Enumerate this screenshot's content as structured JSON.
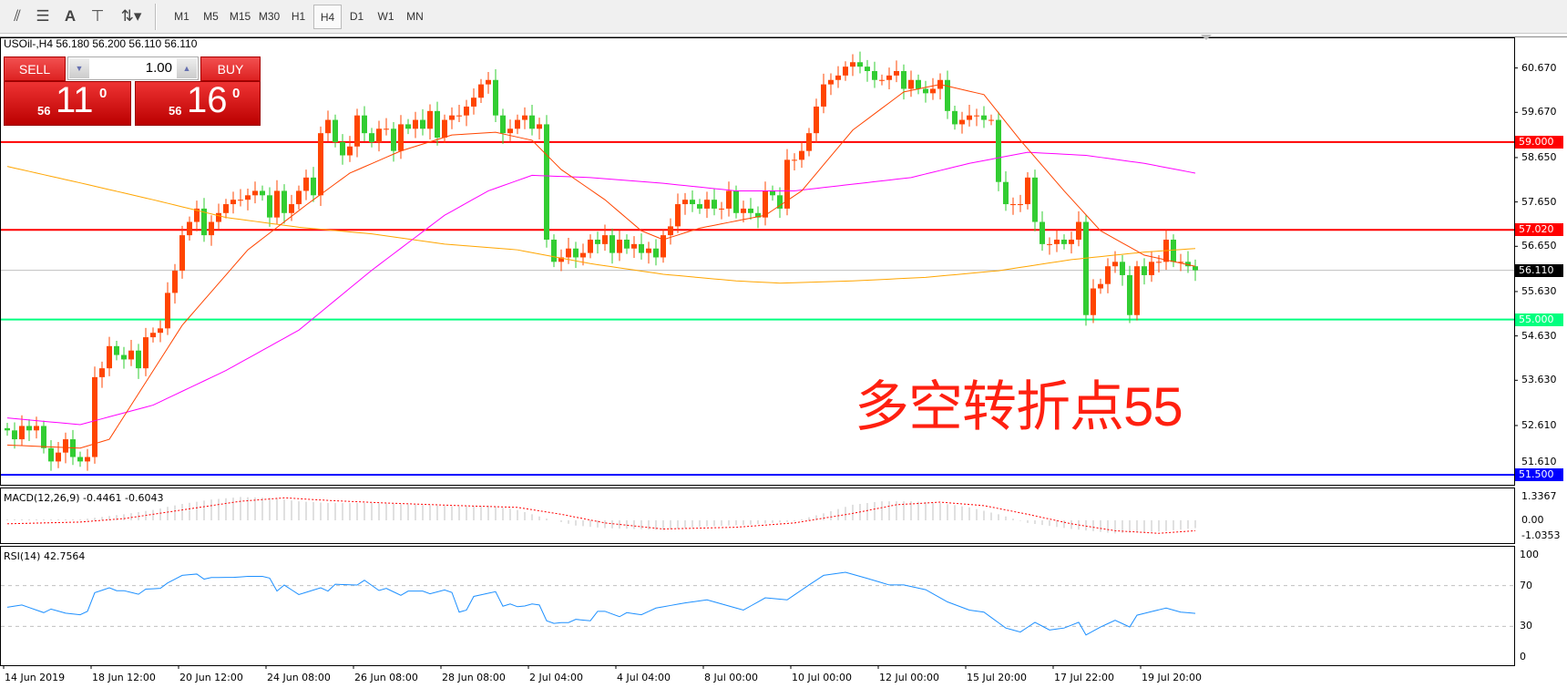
{
  "toolbar": {
    "icons": [
      "fibonacci-expansion-icon",
      "fibonacci-fan-icon",
      "text-icon",
      "text-label-icon",
      "arrows-icon"
    ],
    "timeframes": [
      "M1",
      "M5",
      "M15",
      "M30",
      "H1",
      "H4",
      "D1",
      "W1",
      "MN"
    ],
    "active": "H4"
  },
  "symbol_info": "USOil-,H4  56.180 56.200 56.110 56.110",
  "trade": {
    "sell_label": "SELL",
    "buy_label": "BUY",
    "lot": "1.00",
    "sell_small": "56",
    "sell_big": "11",
    "sell_sup": "0",
    "buy_small": "56",
    "buy_big": "16",
    "buy_sup": "0"
  },
  "annotation": "多空转折点55",
  "macd_label": "MACD(12,26,9) -0.4461 -0.6043",
  "rsi_label": "RSI(14) 42.7564",
  "colors": {
    "up": "#ff4500",
    "down": "#32cd32",
    "ma_fast": "#ff4500",
    "ma_mid": "#ff00ff",
    "ma_slow": "#ffa500",
    "resistance": "#ff0000",
    "support": "#00ff7f",
    "low_line": "#0000ff",
    "macd_hist": "#c0c0c0",
    "macd_signal": "#ff0000",
    "rsi": "#1e90ff"
  },
  "chart_data": {
    "type": "candlestick",
    "price_axis": {
      "ticks": [
        "60.670",
        "59.670",
        "58.650",
        "57.650",
        "56.650",
        "55.630",
        "54.630",
        "53.630",
        "52.610",
        "51.610"
      ],
      "range": [
        51.3,
        60.95
      ]
    },
    "levels": [
      {
        "value": "59.000",
        "color": "#ff0000"
      },
      {
        "value": "57.020",
        "color": "#ff0000"
      },
      {
        "value": "56.110",
        "color": "#000000",
        "line": "#c0c0c0"
      },
      {
        "value": "55.000",
        "color": "#00ff7f"
      },
      {
        "value": "51.500",
        "color": "#0000ff"
      }
    ],
    "time_labels": [
      "14 Jun 2019",
      "18 Jun 12:00",
      "20 Jun 12:00",
      "24 Jun 08:00",
      "26 Jun 08:00",
      "28 Jun 08:00",
      "2 Jul 04:00",
      "4 Jul 04:00",
      "8 Jul 00:00",
      "10 Jul 00:00",
      "12 Jul 00:00",
      "15 Jul 20:00",
      "17 Jul 22:00",
      "19 Jul 20:00"
    ],
    "closes": [
      52.5,
      52.3,
      52.6,
      52.5,
      52.6,
      52.1,
      51.8,
      52.0,
      52.3,
      51.9,
      51.8,
      51.9,
      53.7,
      53.9,
      54.4,
      54.2,
      54.1,
      54.3,
      53.9,
      54.6,
      54.7,
      54.8,
      55.6,
      56.1,
      56.9,
      57.2,
      57.5,
      56.9,
      57.2,
      57.4,
      57.6,
      57.7,
      57.7,
      57.8,
      57.9,
      57.8,
      57.3,
      57.9,
      57.4,
      57.6,
      57.9,
      58.2,
      57.8,
      59.2,
      59.5,
      59.0,
      58.7,
      58.9,
      59.6,
      59.2,
      59.0,
      59.3,
      59.3,
      58.8,
      59.4,
      59.3,
      59.5,
      59.3,
      59.7,
      59.1,
      59.5,
      59.6,
      59.6,
      59.8,
      60.0,
      60.3,
      60.4,
      59.6,
      59.2,
      59.3,
      59.5,
      59.6,
      59.3,
      59.4,
      56.8,
      56.3,
      56.4,
      56.6,
      56.4,
      56.5,
      56.8,
      56.7,
      56.9,
      56.5,
      56.8,
      56.6,
      56.7,
      56.5,
      56.6,
      56.4,
      56.9,
      57.1,
      57.6,
      57.7,
      57.6,
      57.5,
      57.7,
      57.5,
      57.5,
      57.9,
      57.4,
      57.5,
      57.4,
      57.3,
      57.9,
      57.8,
      57.5,
      58.6,
      58.6,
      58.8,
      59.2,
      59.8,
      60.3,
      60.4,
      60.5,
      60.7,
      60.8,
      60.7,
      60.6,
      60.4,
      60.4,
      60.5,
      60.6,
      60.2,
      60.4,
      60.2,
      60.1,
      60.2,
      60.4,
      59.7,
      59.4,
      59.5,
      59.6,
      59.6,
      59.5,
      59.5,
      58.1,
      57.6,
      57.6,
      57.6,
      58.2,
      57.2,
      56.7,
      56.7,
      56.8,
      56.7,
      56.8,
      57.2,
      55.1,
      55.7,
      55.8,
      56.2,
      56.3,
      56.0,
      55.1,
      56.2,
      56.0,
      56.3,
      56.3,
      56.8,
      56.3,
      56.3,
      56.2,
      56.11
    ],
    "ma_fast": [
      [
        0,
        52.17
      ],
      [
        10,
        52.1
      ],
      [
        14,
        52.3
      ],
      [
        24,
        54.87
      ],
      [
        33,
        56.57
      ],
      [
        41,
        57.58
      ],
      [
        47,
        58.3
      ],
      [
        54,
        58.8
      ],
      [
        61,
        59.16
      ],
      [
        67,
        59.22
      ],
      [
        72,
        59.04
      ],
      [
        76,
        58.38
      ],
      [
        82,
        57.7
      ],
      [
        87,
        57.0
      ],
      [
        90,
        56.8
      ],
      [
        95,
        57.06
      ],
      [
        104,
        57.35
      ],
      [
        109,
        57.9
      ],
      [
        116,
        59.27
      ],
      [
        123,
        60.13
      ],
      [
        128,
        60.3
      ],
      [
        134,
        60.07
      ],
      [
        139,
        59.04
      ],
      [
        145,
        57.9
      ],
      [
        150,
        57.0
      ],
      [
        156,
        56.45
      ],
      [
        163,
        56.2
      ]
    ],
    "ma_mid": [
      [
        0,
        52.78
      ],
      [
        10,
        52.63
      ],
      [
        20,
        53.07
      ],
      [
        30,
        53.85
      ],
      [
        40,
        54.76
      ],
      [
        50,
        56.11
      ],
      [
        60,
        57.35
      ],
      [
        66,
        57.9
      ],
      [
        72,
        58.25
      ],
      [
        80,
        58.2
      ],
      [
        90,
        58.07
      ],
      [
        100,
        57.9
      ],
      [
        108,
        57.9
      ],
      [
        116,
        58.05
      ],
      [
        124,
        58.2
      ],
      [
        132,
        58.52
      ],
      [
        140,
        58.77
      ],
      [
        148,
        58.7
      ],
      [
        156,
        58.52
      ],
      [
        163,
        58.3
      ]
    ],
    "ma_slow": [
      [
        0,
        58.45
      ],
      [
        10,
        58.08
      ],
      [
        20,
        57.7
      ],
      [
        30,
        57.3
      ],
      [
        40,
        57.08
      ],
      [
        50,
        56.93
      ],
      [
        60,
        56.7
      ],
      [
        70,
        56.57
      ],
      [
        80,
        56.26
      ],
      [
        90,
        56.02
      ],
      [
        100,
        55.87
      ],
      [
        106,
        55.82
      ],
      [
        116,
        55.87
      ],
      [
        126,
        55.95
      ],
      [
        136,
        56.1
      ],
      [
        146,
        56.35
      ],
      [
        156,
        56.52
      ],
      [
        163,
        56.6
      ]
    ],
    "macd": {
      "ticks": [
        "1.3367",
        "0.00",
        "-1.0353"
      ],
      "hist": [
        [
          0,
          0.05
        ],
        [
          10,
          0.05
        ],
        [
          12,
          0.15
        ],
        [
          16,
          0.35
        ],
        [
          20,
          0.6
        ],
        [
          24,
          0.95
        ],
        [
          28,
          1.2
        ],
        [
          32,
          1.35
        ],
        [
          36,
          1.3
        ],
        [
          40,
          1.1
        ],
        [
          44,
          1.0
        ],
        [
          50,
          1.0
        ],
        [
          56,
          0.9
        ],
        [
          62,
          0.8
        ],
        [
          66,
          0.85
        ],
        [
          70,
          0.6
        ],
        [
          74,
          0.1
        ],
        [
          78,
          -0.3
        ],
        [
          82,
          -0.45
        ],
        [
          90,
          -0.55
        ],
        [
          96,
          -0.35
        ],
        [
          102,
          -0.25
        ],
        [
          108,
          -0.05
        ],
        [
          112,
          0.4
        ],
        [
          116,
          0.9
        ],
        [
          120,
          1.1
        ],
        [
          124,
          1.1
        ],
        [
          128,
          1.0
        ],
        [
          132,
          0.75
        ],
        [
          136,
          0.35
        ],
        [
          140,
          -0.15
        ],
        [
          146,
          -0.5
        ],
        [
          152,
          -0.75
        ],
        [
          158,
          -0.65
        ],
        [
          163,
          -0.45
        ]
      ],
      "signal": [
        [
          0,
          -0.2
        ],
        [
          10,
          -0.1
        ],
        [
          16,
          0.1
        ],
        [
          24,
          0.6
        ],
        [
          32,
          1.1
        ],
        [
          38,
          1.3
        ],
        [
          44,
          1.15
        ],
        [
          52,
          1.0
        ],
        [
          62,
          0.85
        ],
        [
          70,
          0.75
        ],
        [
          76,
          0.35
        ],
        [
          82,
          -0.15
        ],
        [
          90,
          -0.5
        ],
        [
          100,
          -0.4
        ],
        [
          108,
          -0.15
        ],
        [
          116,
          0.4
        ],
        [
          122,
          0.9
        ],
        [
          128,
          1.05
        ],
        [
          134,
          0.85
        ],
        [
          140,
          0.35
        ],
        [
          146,
          -0.2
        ],
        [
          152,
          -0.6
        ],
        [
          158,
          -0.75
        ],
        [
          163,
          -0.6
        ]
      ]
    },
    "rsi": {
      "ticks": [
        "100",
        "70",
        "30",
        "0"
      ],
      "levels": [
        70,
        30
      ],
      "points": [
        [
          0,
          48.8
        ],
        [
          2,
          51
        ],
        [
          5,
          43.5
        ],
        [
          6,
          47
        ],
        [
          8,
          43
        ],
        [
          10,
          41.4
        ],
        [
          11,
          44.8
        ],
        [
          12,
          63
        ],
        [
          14,
          67.8
        ],
        [
          15,
          65
        ],
        [
          16,
          65
        ],
        [
          18,
          61.5
        ],
        [
          19,
          66.5
        ],
        [
          21,
          67.3
        ],
        [
          22,
          72.6
        ],
        [
          24,
          80
        ],
        [
          26,
          81.3
        ],
        [
          27,
          76.3
        ],
        [
          28,
          77.9
        ],
        [
          31,
          78
        ],
        [
          33,
          79
        ],
        [
          35,
          79
        ],
        [
          36,
          77.3
        ],
        [
          37,
          64.6
        ],
        [
          38,
          70.5
        ],
        [
          40,
          61.2
        ],
        [
          43,
          67.8
        ],
        [
          44,
          64.6
        ],
        [
          45,
          71.3
        ],
        [
          48,
          70.5
        ],
        [
          49,
          75.2
        ],
        [
          51,
          65.2
        ],
        [
          52,
          67.3
        ],
        [
          54,
          60.4
        ],
        [
          55,
          64.6
        ],
        [
          57,
          64.6
        ],
        [
          58,
          62
        ],
        [
          60,
          65.7
        ],
        [
          61,
          63.3
        ],
        [
          62,
          44
        ],
        [
          63,
          46
        ],
        [
          64,
          59.4
        ],
        [
          67,
          64
        ],
        [
          68,
          49.8
        ],
        [
          69,
          52
        ],
        [
          70,
          49.3
        ],
        [
          71,
          50
        ],
        [
          72,
          52
        ],
        [
          73,
          51
        ],
        [
          74,
          35.5
        ],
        [
          75,
          32.9
        ],
        [
          76,
          33.7
        ],
        [
          77,
          33.7
        ],
        [
          78,
          36.9
        ],
        [
          80,
          35.5
        ],
        [
          81,
          44.8
        ],
        [
          82,
          44.8
        ],
        [
          84,
          39.5
        ],
        [
          85,
          43.5
        ],
        [
          87,
          41.4
        ],
        [
          89,
          48
        ],
        [
          93,
          53
        ],
        [
          96,
          56
        ],
        [
          101,
          46
        ],
        [
          104,
          58
        ],
        [
          107,
          56
        ],
        [
          110,
          70.6
        ],
        [
          112,
          80
        ],
        [
          115,
          83
        ],
        [
          118,
          77
        ],
        [
          121,
          70.6
        ],
        [
          123,
          70.6
        ],
        [
          126,
          66
        ],
        [
          129,
          54
        ],
        [
          132,
          46
        ],
        [
          134,
          44
        ],
        [
          137,
          28.4
        ],
        [
          139,
          24.5
        ],
        [
          141,
          34
        ],
        [
          143,
          26.5
        ],
        [
          145,
          28.4
        ],
        [
          147,
          34
        ],
        [
          148,
          21.6
        ],
        [
          150,
          29.4
        ],
        [
          152,
          36
        ],
        [
          154,
          29.4
        ],
        [
          155,
          41
        ],
        [
          159,
          48
        ],
        [
          161,
          44
        ],
        [
          163,
          42.76
        ]
      ]
    }
  }
}
